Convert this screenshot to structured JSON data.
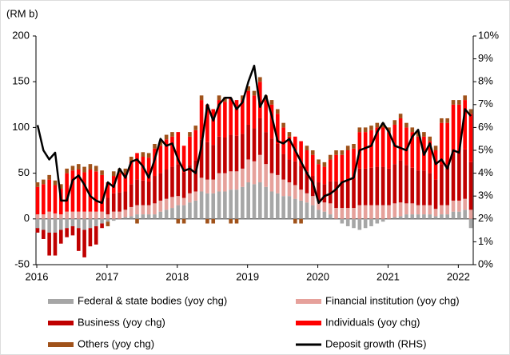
{
  "chart_data": {
    "type": "stacked_bar_line",
    "y_label": "(RM b)",
    "categories": [
      "2016",
      null,
      null,
      null,
      null,
      null,
      null,
      null,
      null,
      null,
      null,
      null,
      "2017",
      null,
      null,
      null,
      null,
      null,
      null,
      null,
      null,
      null,
      null,
      null,
      "2018",
      null,
      null,
      null,
      null,
      null,
      null,
      null,
      null,
      null,
      null,
      null,
      "2019",
      null,
      null,
      null,
      null,
      null,
      null,
      null,
      null,
      null,
      null,
      null,
      "2020",
      null,
      null,
      null,
      null,
      null,
      null,
      null,
      null,
      null,
      null,
      null,
      "2021",
      null,
      null,
      null,
      null,
      null,
      null,
      null,
      null,
      null,
      null,
      null,
      "2022",
      null,
      null
    ],
    "ylim": [
      -50,
      200
    ],
    "yticks": [
      -50,
      0,
      50,
      100,
      150,
      200
    ],
    "y2lim": [
      0,
      10
    ],
    "y2ticks": [
      {
        "value": 0,
        "label": "0%"
      },
      {
        "value": 1,
        "label": "1%"
      },
      {
        "value": 2,
        "label": "2%"
      },
      {
        "value": 3,
        "label": "3%"
      },
      {
        "value": 4,
        "label": "4%"
      },
      {
        "value": 5,
        "label": "5%"
      },
      {
        "value": 6,
        "label": "6%"
      },
      {
        "value": 7,
        "label": "7%"
      },
      {
        "value": 8,
        "label": "8%"
      },
      {
        "value": 9,
        "label": "9%"
      },
      {
        "value": 10,
        "label": "10%"
      }
    ],
    "series": [
      {
        "name": "Federal & state bodies (yoy chg)",
        "color": "#a6a6a6",
        "kind": "bar",
        "values": [
          -10,
          -12,
          -15,
          -15,
          -12,
          -10,
          -8,
          -10,
          -12,
          -10,
          -8,
          -5,
          -3,
          -2,
          0,
          2,
          3,
          5,
          5,
          5,
          5,
          8,
          10,
          12,
          15,
          15,
          18,
          20,
          30,
          28,
          28,
          30,
          30,
          32,
          32,
          35,
          40,
          38,
          40,
          35,
          30,
          28,
          25,
          25,
          22,
          20,
          18,
          15,
          10,
          8,
          5,
          0,
          -5,
          -8,
          -10,
          -12,
          -10,
          -8,
          -5,
          -3,
          0,
          2,
          3,
          5,
          5,
          5,
          5,
          5,
          3,
          5,
          5,
          8,
          8,
          10,
          -10
        ]
      },
      {
        "name": "Financial institution (yoy chg)",
        "color": "#e6a19b",
        "kind": "bar",
        "values": [
          5,
          5,
          8,
          6,
          5,
          8,
          8,
          8,
          8,
          8,
          8,
          8,
          5,
          8,
          8,
          8,
          10,
          10,
          10,
          10,
          12,
          12,
          12,
          12,
          10,
          8,
          10,
          10,
          15,
          15,
          15,
          20,
          20,
          20,
          20,
          20,
          25,
          25,
          30,
          25,
          20,
          20,
          18,
          15,
          15,
          12,
          10,
          10,
          10,
          10,
          12,
          12,
          12,
          12,
          12,
          15,
          15,
          15,
          15,
          15,
          15,
          15,
          15,
          12,
          12,
          10,
          10,
          10,
          8,
          10,
          10,
          12,
          12,
          12,
          10
        ]
      },
      {
        "name": "Business (yoy chg)",
        "color": "#c00000",
        "kind": "bar",
        "values": [
          -5,
          -10,
          -25,
          -25,
          -15,
          -10,
          -10,
          -25,
          -30,
          -20,
          -20,
          -5,
          18,
          20,
          21,
          20,
          25,
          28,
          27,
          26,
          30,
          30,
          32,
          33,
          35,
          28,
          31,
          34,
          42,
          41,
          38,
          40,
          39,
          40,
          39,
          38,
          38,
          36,
          40,
          35,
          38,
          34,
          28,
          25,
          26,
          26,
          24,
          22,
          20,
          20,
          24,
          29,
          29,
          32,
          32,
          40,
          40,
          41,
          42,
          42,
          40,
          43,
          46,
          42,
          39,
          38,
          38,
          35,
          32,
          45,
          45,
          52,
          52,
          54,
          52
        ]
      },
      {
        "name": "Individuals (yoy chg)",
        "color": "#ff0000",
        "kind": "bar",
        "values": [
          30,
          33,
          35,
          31,
          28,
          42,
          45,
          46,
          43,
          46,
          44,
          40,
          17,
          19,
          21,
          20,
          25,
          29,
          26,
          26,
          30,
          30,
          33,
          33,
          35,
          29,
          31,
          33,
          43,
          41,
          39,
          40,
          39,
          40,
          39,
          37,
          37,
          36,
          40,
          35,
          37,
          33,
          29,
          25,
          27,
          27,
          23,
          23,
          20,
          19,
          24,
          29,
          29,
          31,
          33,
          40,
          40,
          41,
          43,
          43,
          40,
          43,
          46,
          41,
          39,
          37,
          37,
          35,
          32,
          45,
          45,
          53,
          53,
          54,
          53
        ]
      },
      {
        "name": "Others (yoy chg)",
        "color": "#a0521a",
        "kind": "bar",
        "values": [
          5,
          5,
          5,
          5,
          5,
          5,
          5,
          6,
          6,
          6,
          6,
          5,
          -5,
          5,
          5,
          5,
          5,
          -5,
          5,
          5,
          5,
          5,
          5,
          5,
          -5,
          -5,
          5,
          5,
          5,
          -5,
          -5,
          5,
          5,
          -5,
          -5,
          5,
          5,
          5,
          5,
          5,
          5,
          5,
          5,
          5,
          -5,
          -5,
          5,
          5,
          5,
          5,
          5,
          5,
          5,
          5,
          5,
          5,
          5,
          5,
          5,
          5,
          5,
          5,
          5,
          5,
          5,
          5,
          5,
          5,
          5,
          5,
          5,
          5,
          5,
          5,
          5
        ]
      },
      {
        "name": "Deposit growth (RHS)",
        "color": "#000000",
        "kind": "line",
        "axis": "y2",
        "values": [
          6.1,
          5.0,
          4.6,
          4.9,
          2.8,
          2.8,
          3.7,
          3.9,
          3.5,
          3.0,
          2.8,
          2.7,
          3.6,
          3.4,
          4.2,
          3.8,
          4.5,
          4.6,
          4.3,
          3.8,
          4.6,
          5.5,
          5.2,
          5.3,
          4.6,
          4.1,
          4.2,
          4.0,
          5.2,
          7.0,
          6.3,
          7.0,
          7.3,
          7.3,
          6.8,
          7.1,
          8.0,
          8.7,
          6.9,
          7.4,
          6.5,
          5.4,
          5.3,
          5.5,
          5.0,
          4.5,
          4.0,
          3.6,
          2.7,
          3.0,
          3.1,
          3.3,
          3.6,
          3.7,
          3.8,
          5.0,
          5.1,
          5.2,
          5.8,
          6.2,
          5.8,
          5.2,
          5.1,
          5.0,
          5.6,
          5.9,
          4.8,
          5.3,
          4.4,
          4.6,
          4.2,
          5.0,
          4.9,
          6.8,
          6.5
        ]
      }
    ]
  }
}
